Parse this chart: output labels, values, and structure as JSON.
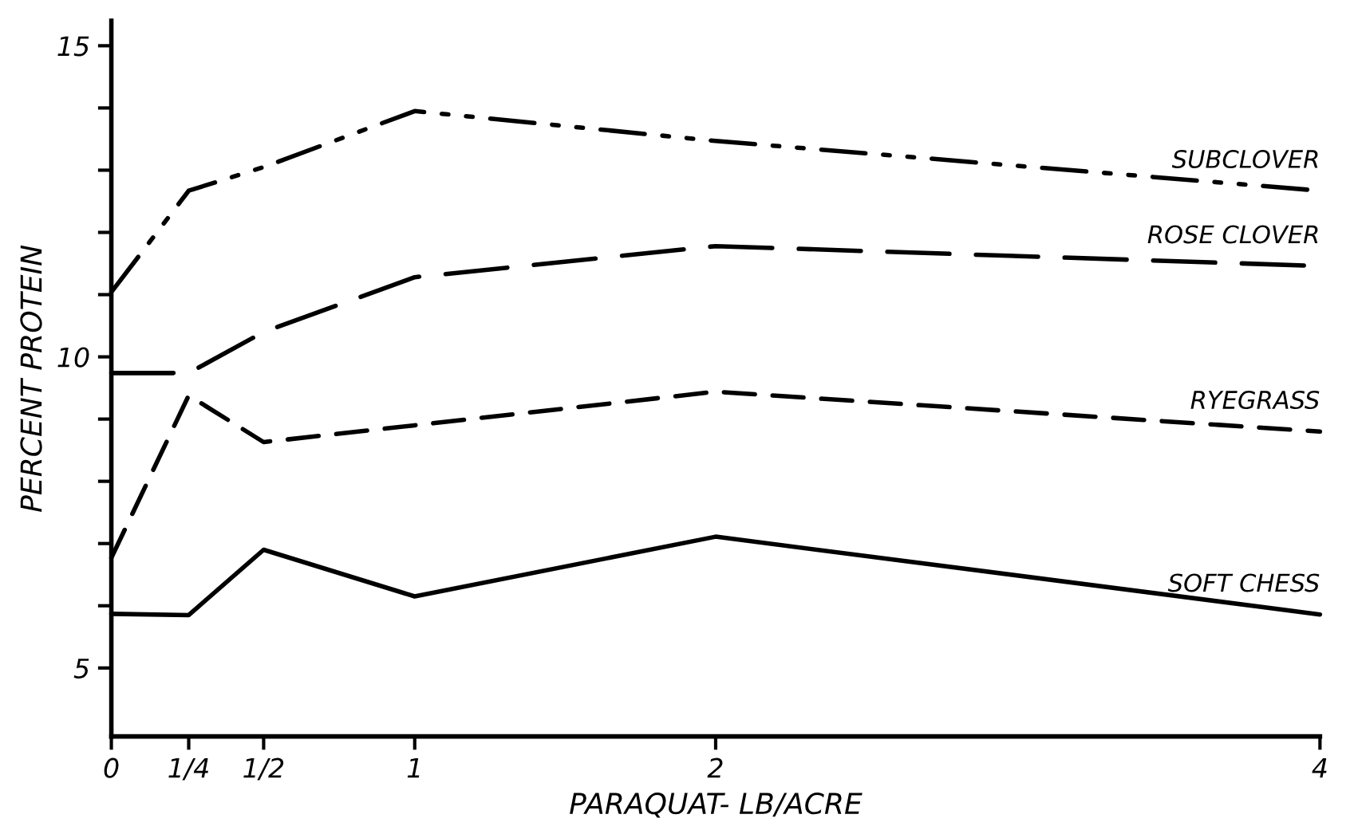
{
  "chart_data": {
    "type": "line",
    "xlabel": "PARAQUAT- LB/ACRE",
    "ylabel": "PERCENT PROTEIN",
    "x": [
      0,
      0.25,
      0.5,
      1,
      2,
      4
    ],
    "series": [
      {
        "name": "SUBCLOVER",
        "color": "#000000",
        "line_style": "dashdotdot",
        "values": [
          11.04,
          12.67,
          13.05,
          13.95,
          13.47,
          12.67
        ]
      },
      {
        "name": "ROSE CLOVER",
        "color": "#000000",
        "line_style": "longdash",
        "values": [
          9.74,
          9.74,
          10.4,
          11.28,
          11.78,
          11.46
        ]
      },
      {
        "name": "RYEGRASS",
        "color": "#000000",
        "line_style": "dashed",
        "values": [
          6.77,
          9.38,
          8.63,
          8.9,
          9.44,
          8.8
        ]
      },
      {
        "name": "SOFT CHESS",
        "color": "#000000",
        "line_style": "solid",
        "values": [
          5.87,
          5.85,
          6.9,
          6.15,
          7.11,
          5.86
        ]
      }
    ],
    "xlim": [
      0,
      4
    ],
    "ylim": [
      3.9,
      15.4
    ],
    "xticks": [
      0,
      {
        "value": 0.25,
        "label": "1/4"
      },
      {
        "value": 0.5,
        "label": "1/2"
      },
      1,
      2,
      4
    ],
    "yticks": [
      5,
      {
        "value": 6,
        "label": null
      },
      {
        "value": 7,
        "label": null
      },
      {
        "value": 8,
        "label": null
      },
      {
        "value": 9,
        "label": null
      },
      10,
      {
        "value": 11,
        "label": null
      },
      {
        "value": 12,
        "label": null
      },
      {
        "value": 13,
        "label": null
      },
      {
        "value": 14,
        "label": null
      },
      15
    ],
    "grid": false,
    "legend": false,
    "marker": "none"
  }
}
